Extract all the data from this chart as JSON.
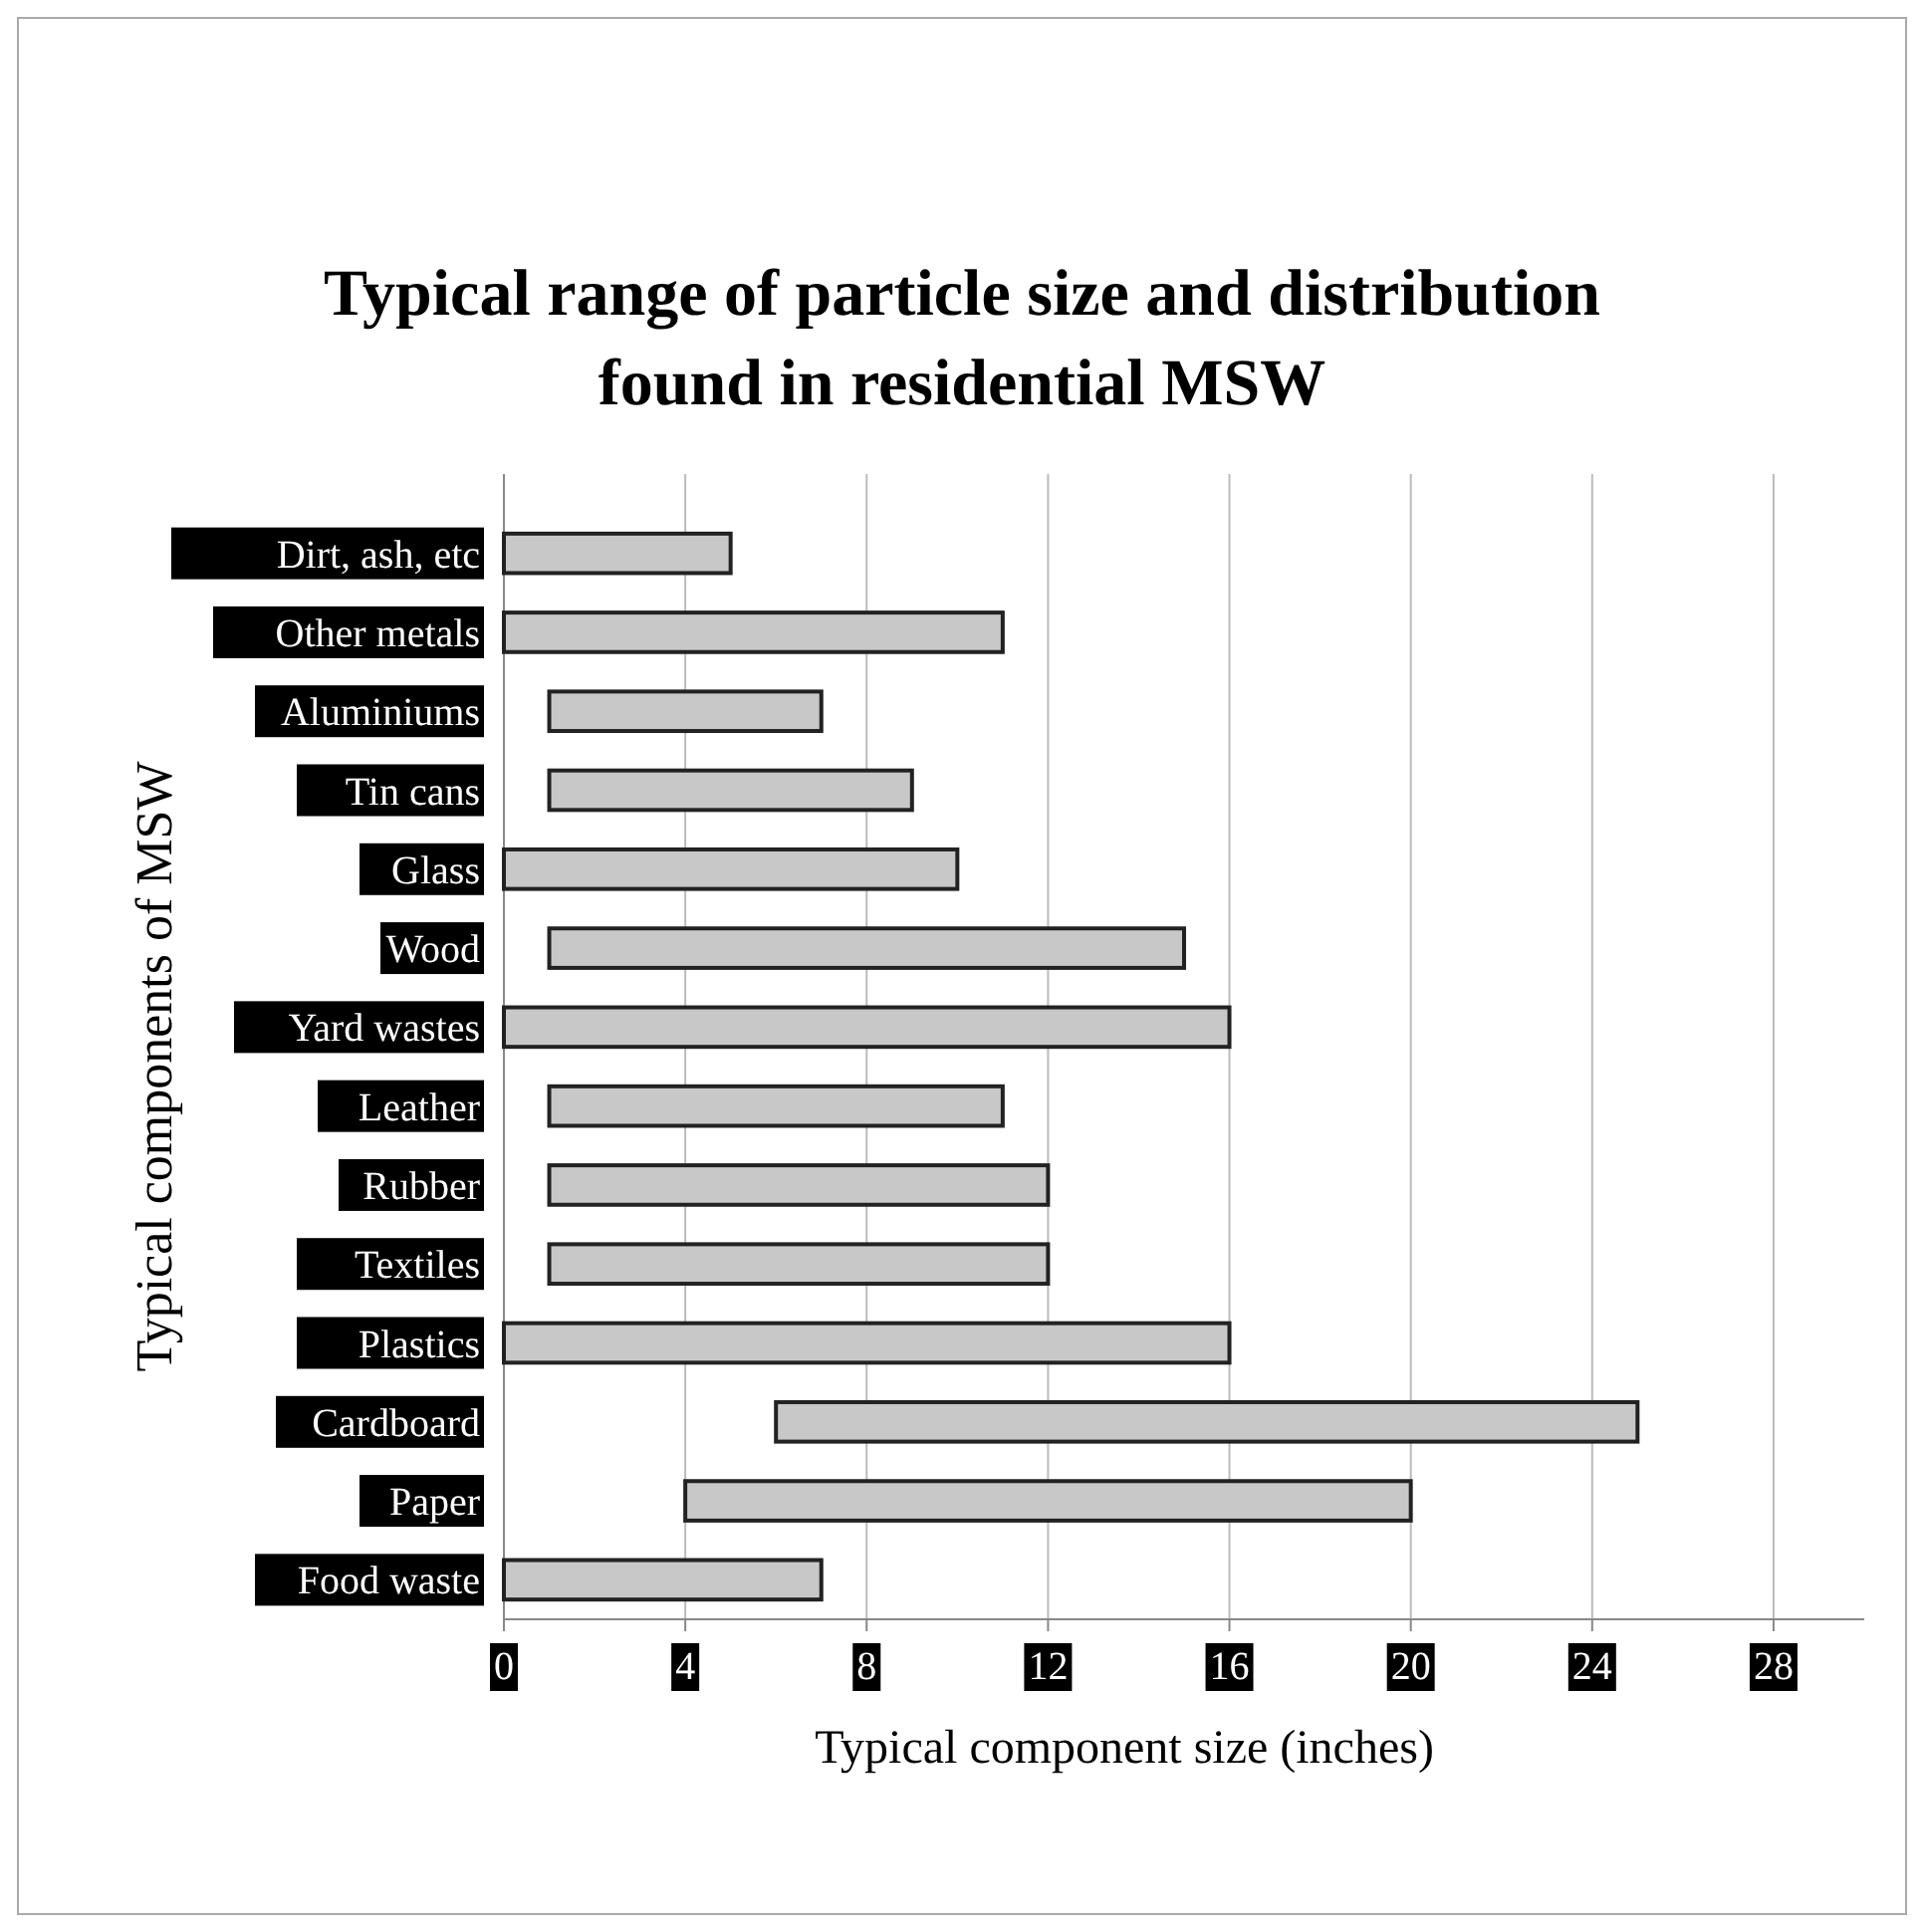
{
  "chart_data": {
    "type": "bar",
    "orientation": "horizontal",
    "title": "Typical range of particle size and distribution found in residential MSW",
    "xlabel": "Typical component size (inches)",
    "ylabel": "Typical components of MSW",
    "categories": [
      "Dirt, ash, etc",
      "Other metals",
      "Aluminiums",
      "Tin cans",
      "Glass",
      "Wood",
      "Yard wastes",
      "Leather",
      "Rubber",
      "Textiles",
      "Plastics",
      "Cardboard",
      "Paper",
      "Food waste"
    ],
    "base": [
      0,
      0,
      1,
      1,
      0,
      1,
      0,
      1,
      1,
      1,
      0,
      6,
      4,
      0
    ],
    "values": [
      5,
      11,
      6,
      8,
      10,
      14,
      16,
      10,
      11,
      11,
      16,
      19,
      16,
      7
    ],
    "color": "#c8c8c8",
    "xlim": [
      0,
      30
    ],
    "xticks": [
      0,
      4,
      8,
      12,
      16,
      20,
      24,
      28
    ],
    "grid": "x"
  }
}
